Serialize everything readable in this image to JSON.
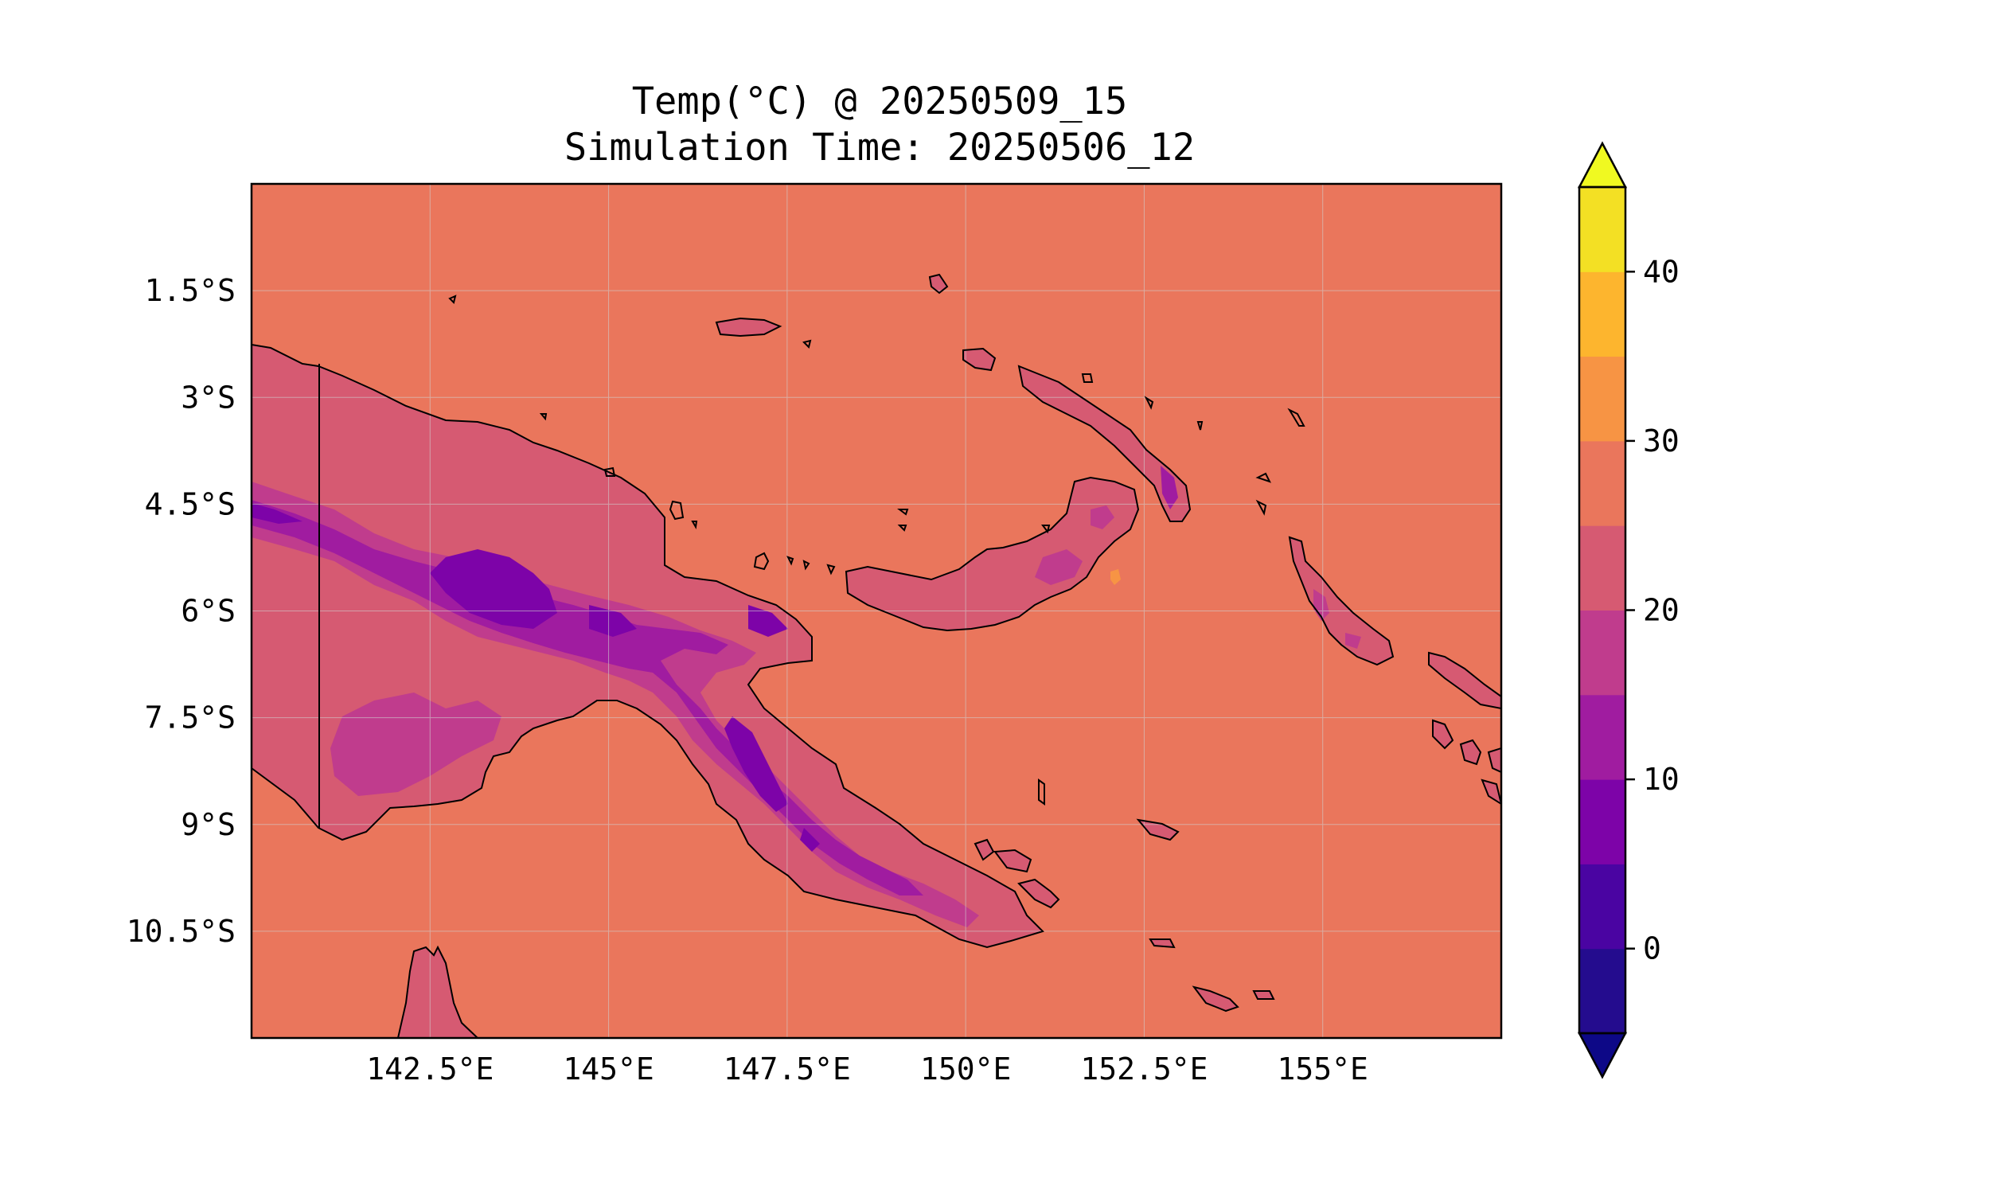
{
  "title": {
    "line1": "Temp(°C) @ 20250509_15",
    "line2": "Simulation Time: 20250506_12"
  },
  "map": {
    "extent": {
      "lon_min": 140.0,
      "lon_max": 157.5,
      "lat_min": -12.0,
      "lat_max": 0.0
    },
    "x_ticks": [
      {
        "value": 142.5,
        "label": "142.5°E"
      },
      {
        "value": 145.0,
        "label": "145°E"
      },
      {
        "value": 147.5,
        "label": "147.5°E"
      },
      {
        "value": 150.0,
        "label": "150°E"
      },
      {
        "value": 152.5,
        "label": "152.5°E"
      },
      {
        "value": 155.0,
        "label": "155°E"
      }
    ],
    "y_ticks": [
      {
        "value": -1.5,
        "label": "1.5°S"
      },
      {
        "value": -3.0,
        "label": "3°S"
      },
      {
        "value": -4.5,
        "label": "4.5°S"
      },
      {
        "value": -6.0,
        "label": "6°S"
      },
      {
        "value": -7.5,
        "label": "7.5°S"
      },
      {
        "value": -9.0,
        "label": "9°S"
      },
      {
        "value": -10.5,
        "label": "10.5°S"
      }
    ],
    "gridlines": true,
    "ocean_temp_band": "25-30",
    "border_line_lon": 141.0
  },
  "colorbar": {
    "levels": [
      -5,
      0,
      5,
      10,
      15,
      20,
      25,
      30,
      35,
      40,
      45
    ],
    "colors": [
      "#240c8e",
      "#4a04a2",
      "#7d03a8",
      "#a01ca0",
      "#c03c8d",
      "#d65a72",
      "#ea765c",
      "#f79444",
      "#fdb52e",
      "#f3e024"
    ],
    "under_color": "#0d0887",
    "over_color": "#f0f921",
    "tick_values": [
      0,
      10,
      20,
      30,
      40
    ],
    "tick_labels": [
      "0",
      "10",
      "20",
      "30",
      "40"
    ],
    "extend": "both"
  },
  "colors": {
    "ocean": "#ea765c",
    "land_25": "#d65a72",
    "land_20": "#c03c8d",
    "land_15": "#a01ca0",
    "land_10": "#7d03a8",
    "coast": "#000000"
  }
}
